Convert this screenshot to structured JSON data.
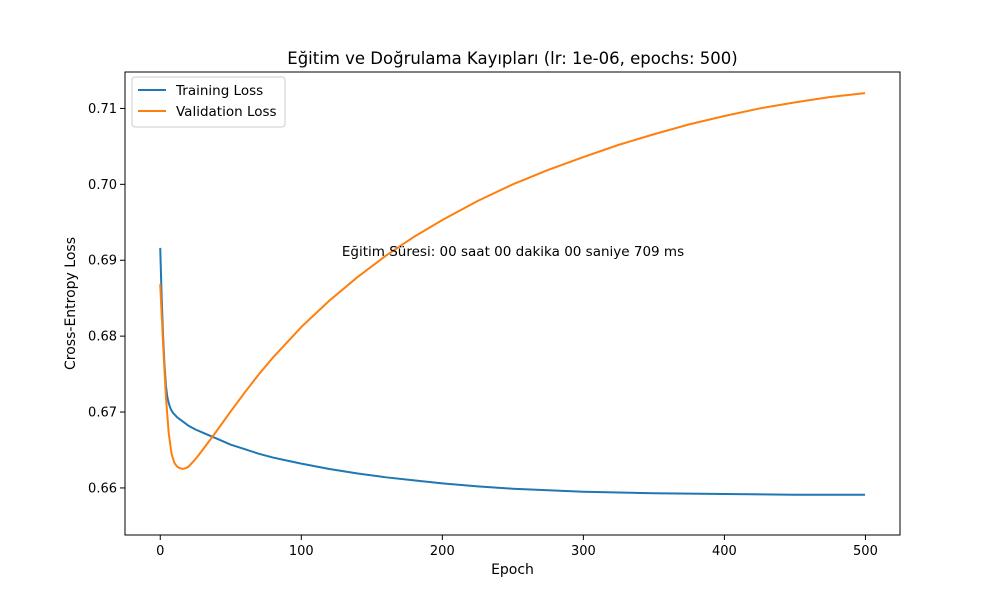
{
  "chart_data": {
    "type": "line",
    "title": "Eğitim ve Doğrulama Kayıpları (lr: 1e-06, epochs: 500)",
    "xlabel": "Epoch",
    "ylabel": "Cross-Entropy Loss",
    "xlim": [
      -25,
      524.5
    ],
    "ylim": [
      0.6538,
      0.7148
    ],
    "xticks": [
      0,
      100,
      200,
      300,
      400,
      500
    ],
    "yticks": [
      0.66,
      0.67,
      0.68,
      0.69,
      0.7,
      0.71
    ],
    "xtick_labels": [
      "0",
      "100",
      "200",
      "300",
      "400",
      "500"
    ],
    "ytick_labels": [
      "0.66",
      "0.67",
      "0.68",
      "0.69",
      "0.70",
      "0.71"
    ],
    "grid": false,
    "legend_position": "upper-left",
    "annotation": "Eğitim Süresi: 00 saat 00 dakika 00 saniye 709 ms",
    "series": [
      {
        "name": "Training Loss",
        "color": "#1f77b4",
        "x": [
          0,
          1,
          2,
          3,
          4,
          5,
          6,
          7,
          8,
          9,
          10,
          12,
          15,
          20,
          25,
          30,
          40,
          50,
          60,
          70,
          80,
          90,
          100,
          120,
          140,
          160,
          180,
          200,
          225,
          250,
          275,
          300,
          350,
          400,
          450,
          499
        ],
        "y": [
          0.6915,
          0.685,
          0.68,
          0.6762,
          0.6735,
          0.672,
          0.6712,
          0.6706,
          0.6702,
          0.6699,
          0.6697,
          0.6693,
          0.6689,
          0.6682,
          0.6677,
          0.6673,
          0.6665,
          0.6657,
          0.6651,
          0.6645,
          0.664,
          0.6636,
          0.6632,
          0.6625,
          0.6619,
          0.6614,
          0.661,
          0.6606,
          0.6602,
          0.6599,
          0.6597,
          0.6595,
          0.6593,
          0.6592,
          0.6591,
          0.6591
        ]
      },
      {
        "name": "Validation Loss",
        "color": "#ff7f0e",
        "x": [
          0,
          2,
          4,
          6,
          8,
          10,
          12,
          14,
          16,
          18,
          20,
          25,
          30,
          40,
          50,
          60,
          70,
          80,
          100,
          120,
          140,
          160,
          180,
          200,
          225,
          250,
          275,
          300,
          325,
          350,
          375,
          400,
          425,
          450,
          475,
          499
        ],
        "y": [
          0.6867,
          0.679,
          0.672,
          0.6672,
          0.6645,
          0.6633,
          0.6628,
          0.6626,
          0.6625,
          0.6626,
          0.6628,
          0.6638,
          0.665,
          0.6675,
          0.6701,
          0.6726,
          0.675,
          0.6772,
          0.6812,
          0.6847,
          0.6878,
          0.6906,
          0.6931,
          0.6953,
          0.6978,
          0.7,
          0.7019,
          0.7036,
          0.7052,
          0.7066,
          0.7079,
          0.709,
          0.71,
          0.7108,
          0.7115,
          0.712
        ]
      }
    ]
  }
}
